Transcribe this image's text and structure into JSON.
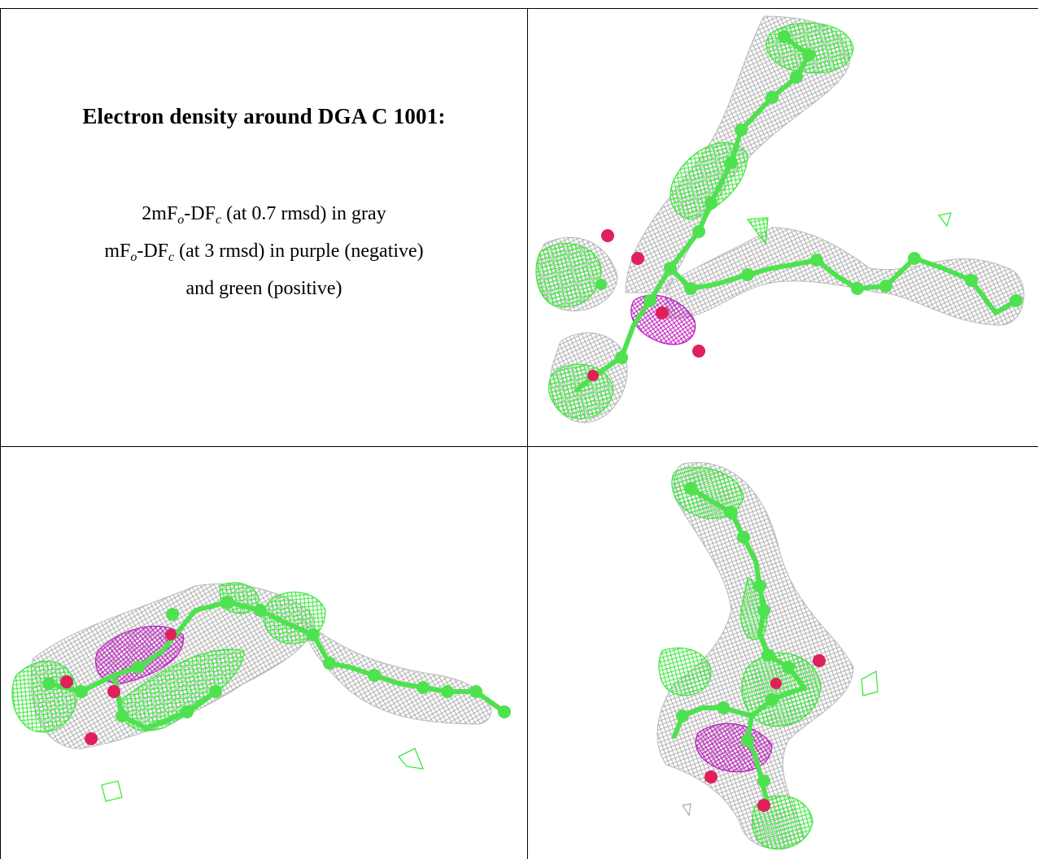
{
  "heading": "Electron density around DGA C 1001:",
  "legend": {
    "line1": {
      "pre": "2mF",
      "sub1": "o",
      "mid": "-DF",
      "sub2": "c",
      "post": " (at 0.7 rmsd) in gray"
    },
    "line2": {
      "pre": "mF",
      "sub1": "o",
      "mid": "-DF",
      "sub2": "c",
      "post": " (at 3 rmsd) in purple (negative)"
    },
    "line3": "and green (positive)"
  },
  "panels": [
    {
      "id": "view-1",
      "description_colors": [
        "gray",
        "green",
        "purple",
        "red"
      ]
    },
    {
      "id": "view-2"
    },
    {
      "id": "view-3"
    }
  ],
  "colors": {
    "mesh_gray": "#a8a8a8",
    "mesh_green": "#3de83d",
    "mesh_purple": "#c020c0",
    "atom_carbon": "#4ee24e",
    "atom_oxygen": "#e0205a",
    "border": "#000000"
  }
}
